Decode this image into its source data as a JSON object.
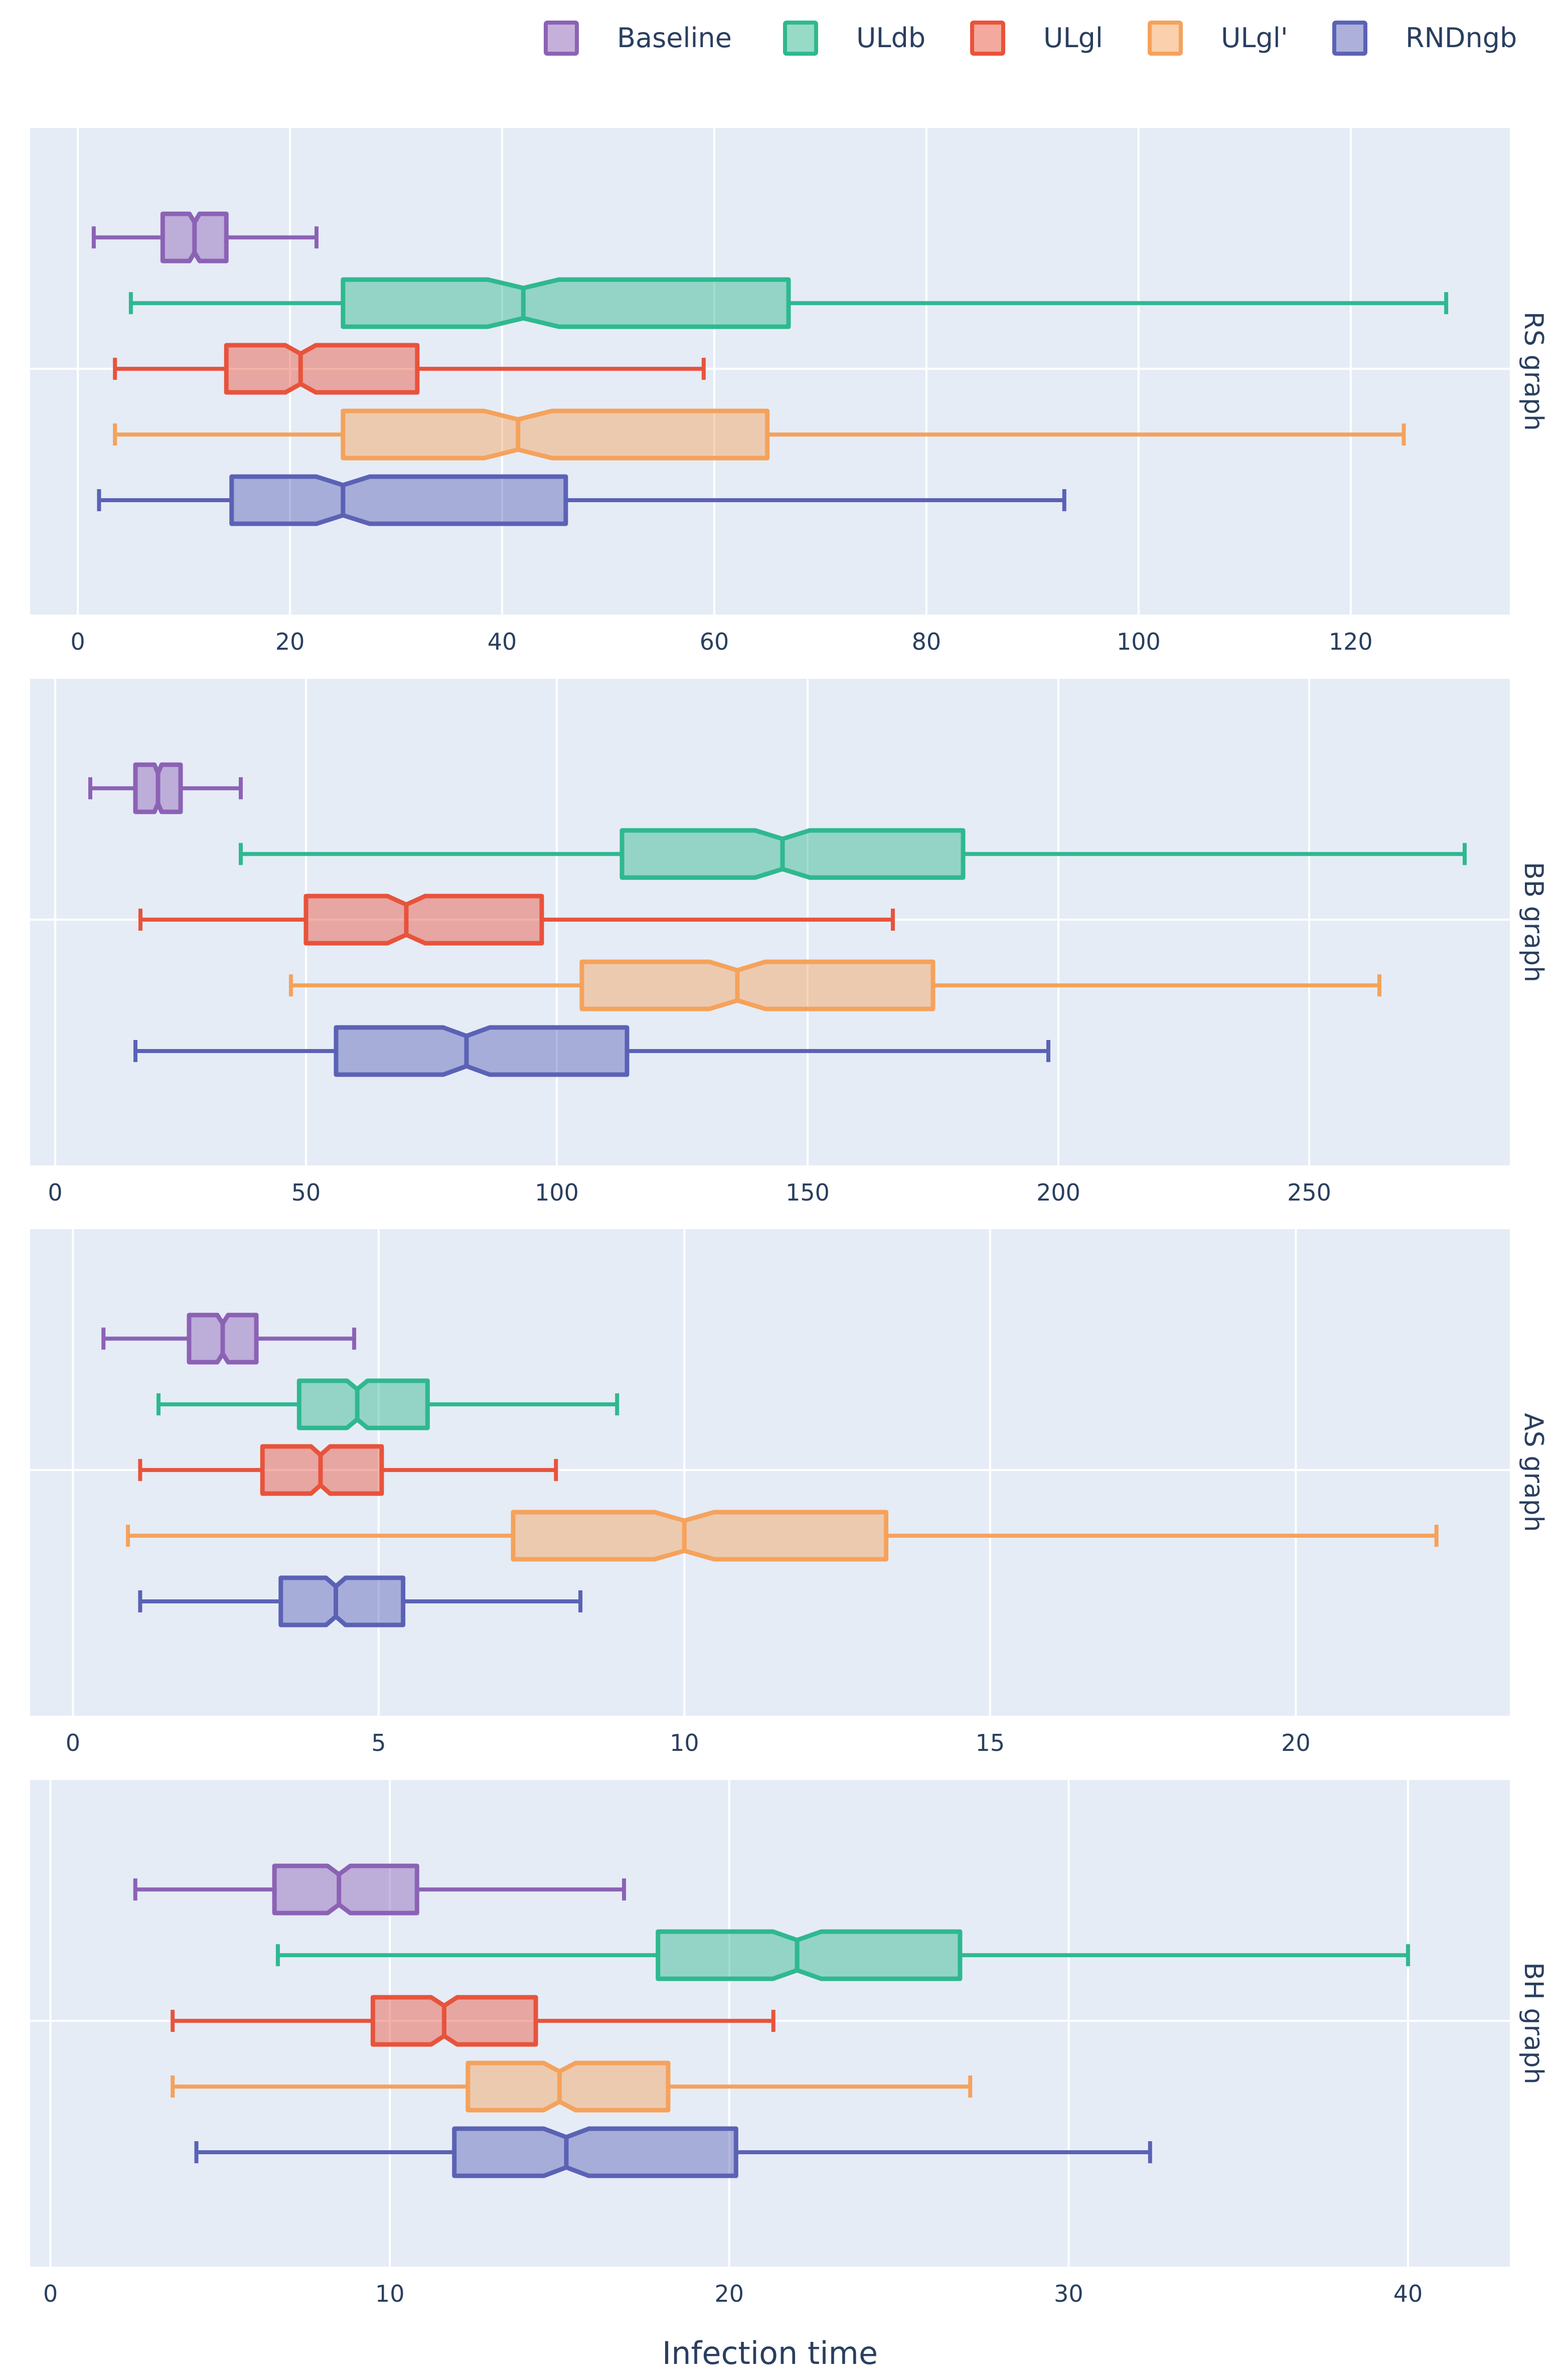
{
  "chart_data": {
    "type": "box",
    "orientation": "horizontal",
    "notched": true,
    "xlabel": "Infection time",
    "legend_position": "top-right",
    "series": [
      {
        "name": "Baseline",
        "color": "#8c62b5"
      },
      {
        "name": "ULdb",
        "color": "#2fb88f"
      },
      {
        "name": "ULgl",
        "color": "#e8533c"
      },
      {
        "name": "ULgl'",
        "color": "#f5a25b"
      },
      {
        "name": "RNDngb",
        "color": "#5b62b5"
      }
    ],
    "panels": [
      {
        "facet_label": "RS graph",
        "xlim": [
          -4.5,
          135
        ],
        "ticks": [
          0,
          20,
          40,
          60,
          80,
          100,
          120
        ],
        "boxes": [
          {
            "series": "Baseline",
            "min": 1.5,
            "q1": 8,
            "median": 11,
            "q3": 14,
            "max": 22.5
          },
          {
            "series": "ULdb",
            "min": 5,
            "q1": 25,
            "median": 42,
            "q3": 67,
            "max": 129
          },
          {
            "series": "ULgl",
            "min": 3.5,
            "q1": 14,
            "median": 21,
            "q3": 32,
            "max": 59
          },
          {
            "series": "ULgl'",
            "min": 3.5,
            "q1": 25,
            "median": 41.5,
            "q3": 65,
            "max": 125
          },
          {
            "series": "RNDngb",
            "min": 2,
            "q1": 14.5,
            "median": 25,
            "q3": 46,
            "max": 93
          }
        ]
      },
      {
        "facet_label": "BB graph",
        "xlim": [
          -5,
          290
        ],
        "ticks": [
          0,
          50,
          100,
          150,
          200,
          250
        ],
        "boxes": [
          {
            "series": "Baseline",
            "min": 7,
            "q1": 16,
            "median": 20.5,
            "q3": 25,
            "max": 37
          },
          {
            "series": "ULdb",
            "min": 37,
            "q1": 113,
            "median": 145,
            "q3": 181,
            "max": 281
          },
          {
            "series": "ULgl",
            "min": 17,
            "q1": 50,
            "median": 70,
            "q3": 97,
            "max": 167
          },
          {
            "series": "ULgl'",
            "min": 47,
            "q1": 105,
            "median": 136,
            "q3": 175,
            "max": 264
          },
          {
            "series": "RNDngb",
            "min": 16,
            "q1": 56,
            "median": 82,
            "q3": 114,
            "max": 198
          }
        ]
      },
      {
        "facet_label": "AS graph",
        "xlim": [
          -0.7,
          23.5
        ],
        "ticks": [
          0,
          5,
          10,
          15,
          20
        ],
        "boxes": [
          {
            "series": "Baseline",
            "min": 0.5,
            "q1": 1.9,
            "median": 2.45,
            "q3": 3,
            "max": 4.6
          },
          {
            "series": "ULdb",
            "min": 1.4,
            "q1": 3.7,
            "median": 4.65,
            "q3": 5.8,
            "max": 8.9
          },
          {
            "series": "ULgl",
            "min": 1.1,
            "q1": 3.1,
            "median": 4.05,
            "q3": 5.05,
            "max": 7.9
          },
          {
            "series": "ULgl'",
            "min": 0.9,
            "q1": 7.2,
            "median": 10,
            "q3": 13.3,
            "max": 22.3
          },
          {
            "series": "RNDngb",
            "min": 1.1,
            "q1": 3.4,
            "median": 4.3,
            "q3": 5.4,
            "max": 8.3
          }
        ]
      },
      {
        "facet_label": "BH graph",
        "xlim": [
          -0.6,
          43
        ],
        "ticks": [
          0,
          10,
          20,
          30,
          40
        ],
        "boxes": [
          {
            "series": "Baseline",
            "min": 2.5,
            "q1": 6.6,
            "median": 8.5,
            "q3": 10.8,
            "max": 16.9
          },
          {
            "series": "ULdb",
            "min": 6.7,
            "q1": 17.9,
            "median": 22,
            "q3": 26.8,
            "max": 40
          },
          {
            "series": "ULgl",
            "min": 3.6,
            "q1": 9.5,
            "median": 11.6,
            "q3": 14.3,
            "max": 21.3
          },
          {
            "series": "ULgl'",
            "min": 3.6,
            "q1": 12.3,
            "median": 15,
            "q3": 18.2,
            "max": 27.1
          },
          {
            "series": "RNDngb",
            "min": 4.3,
            "q1": 11.9,
            "median": 15.2,
            "q3": 20.2,
            "max": 32.4
          }
        ]
      }
    ]
  }
}
